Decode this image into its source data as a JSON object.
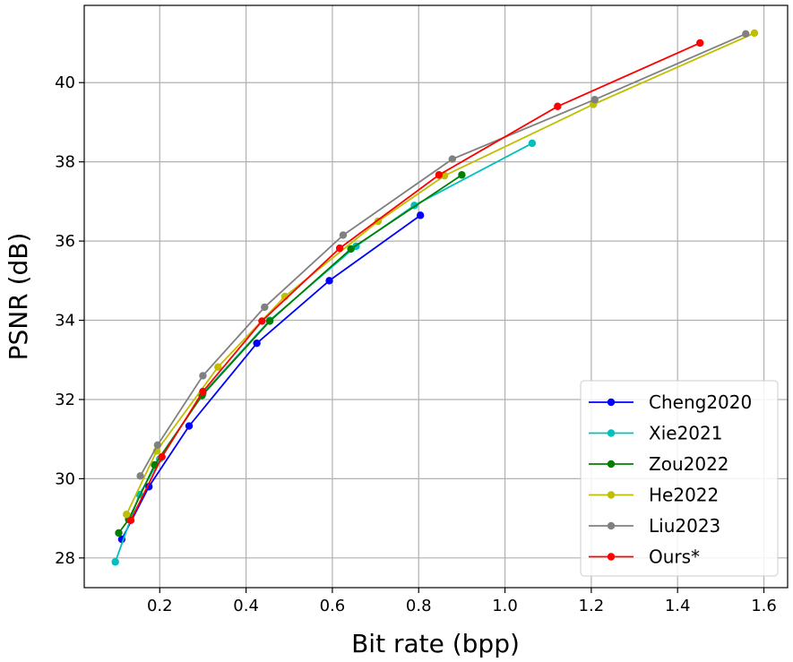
{
  "chart_data": {
    "type": "line",
    "xlabel": "Bit rate (bpp)",
    "ylabel": "PSNR (dB)",
    "xlim": [
      0.025,
      1.655
    ],
    "ylim": [
      27.25,
      41.95
    ],
    "xticks": [
      0.2,
      0.4,
      0.6,
      0.8,
      1.0,
      1.2,
      1.4,
      1.6
    ],
    "xtick_labels": [
      "0.2",
      "0.4",
      "0.6",
      "0.8",
      "1.0",
      "1.2",
      "1.4",
      "1.6"
    ],
    "yticks": [
      28,
      30,
      32,
      34,
      36,
      38,
      40
    ],
    "ytick_labels": [
      "28",
      "30",
      "32",
      "34",
      "36",
      "38",
      "40"
    ],
    "grid": true,
    "legend_position": "lower-right",
    "series": [
      {
        "name": "Cheng2020",
        "color": "#0000ff",
        "x": [
          0.112,
          0.175,
          0.268,
          0.425,
          0.593,
          0.804
        ],
        "y": [
          28.47,
          29.8,
          31.33,
          33.42,
          35.0,
          36.65
        ]
      },
      {
        "name": "Xie2021",
        "color": "#00bfbf",
        "x": [
          0.097,
          0.153,
          0.2,
          0.3,
          0.455,
          0.655,
          0.79,
          1.063
        ],
        "y": [
          27.9,
          29.6,
          30.5,
          32.15,
          34.0,
          35.87,
          36.9,
          38.47
        ]
      },
      {
        "name": "Zou2022",
        "color": "#008000",
        "x": [
          0.105,
          0.128,
          0.188,
          0.298,
          0.455,
          0.643,
          0.9
        ],
        "y": [
          28.63,
          28.97,
          30.35,
          32.1,
          33.98,
          35.8,
          37.67
        ]
      },
      {
        "name": "He2022",
        "color": "#bfbf00",
        "x": [
          0.123,
          0.193,
          0.335,
          0.49,
          0.706,
          0.86,
          1.205,
          1.578
        ],
        "y": [
          29.1,
          30.7,
          32.82,
          34.6,
          36.5,
          37.65,
          39.45,
          41.25
        ]
      },
      {
        "name": "Liu2023",
        "color": "#808080",
        "x": [
          0.155,
          0.195,
          0.3,
          0.443,
          0.625,
          0.878,
          1.208,
          1.558
        ],
        "y": [
          30.07,
          30.85,
          32.6,
          34.33,
          36.15,
          38.07,
          39.57,
          41.23
        ]
      },
      {
        "name": "Ours*",
        "color": "#ff0000",
        "x": [
          0.133,
          0.205,
          0.3,
          0.437,
          0.617,
          0.847,
          1.122,
          1.452
        ],
        "y": [
          28.95,
          30.55,
          32.2,
          33.98,
          35.82,
          37.67,
          39.4,
          41.0
        ]
      }
    ]
  }
}
